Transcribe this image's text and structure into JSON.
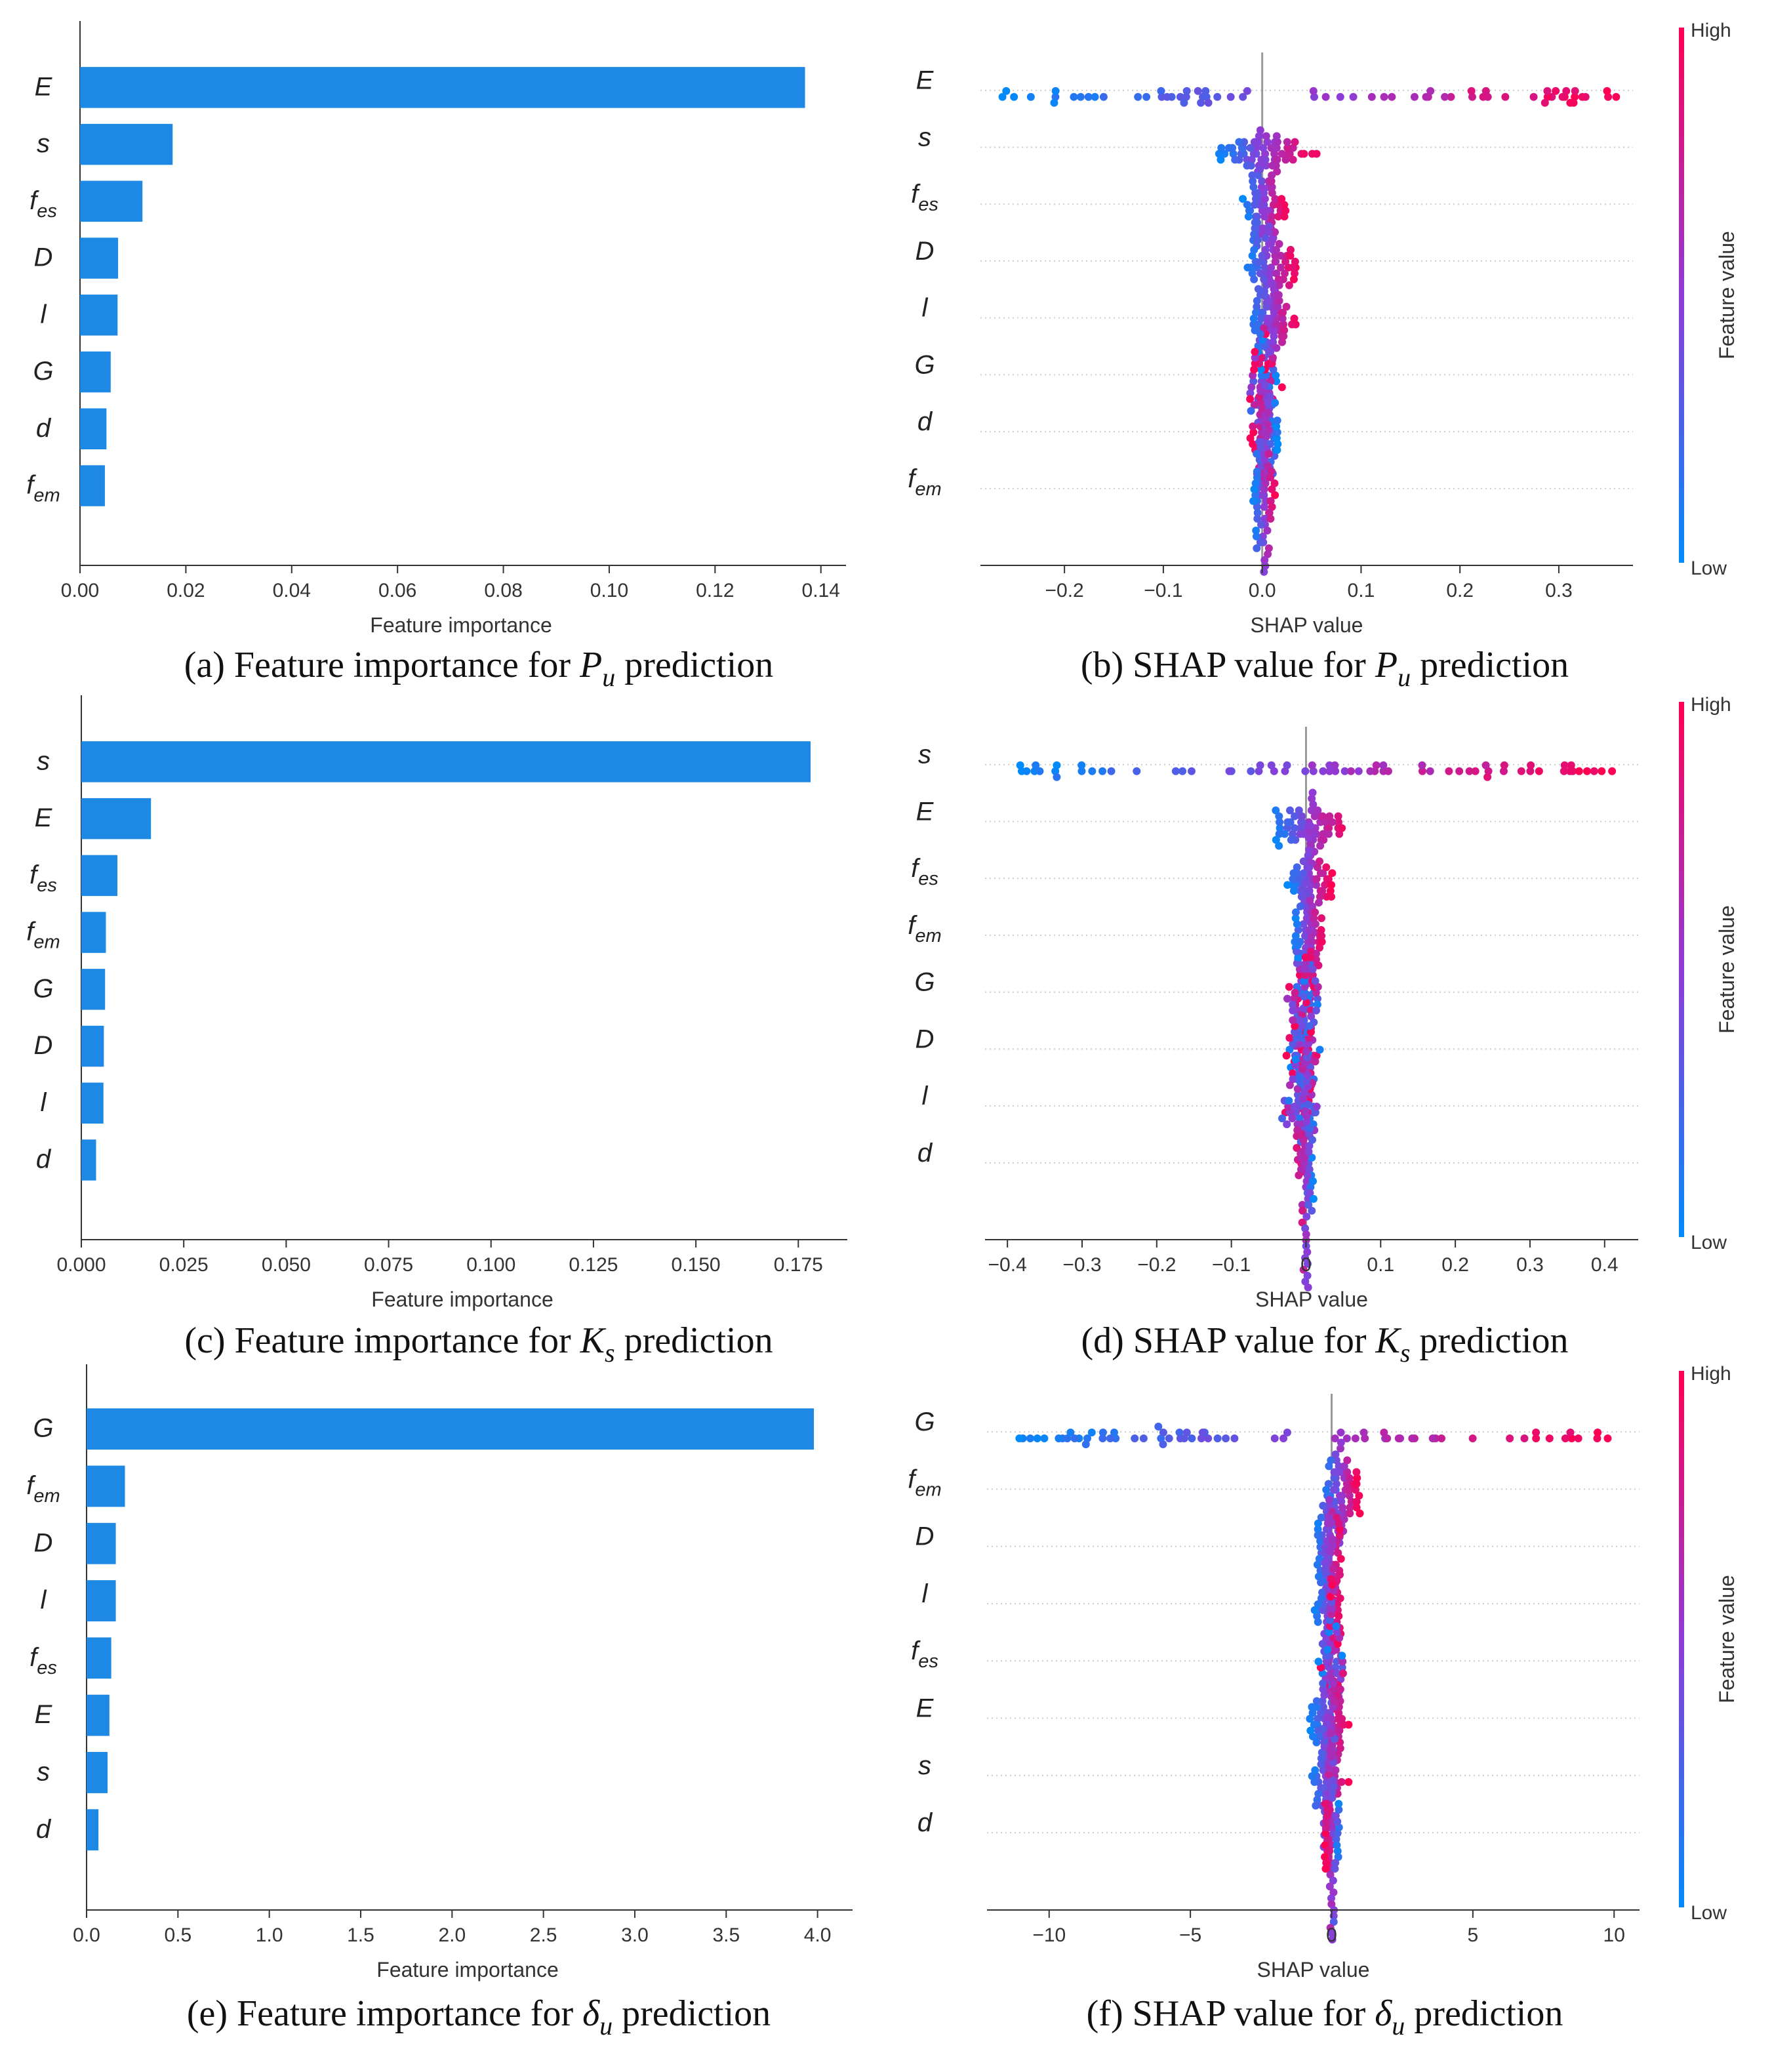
{
  "colorbar": {
    "high_label": "High",
    "low_label": "Low",
    "title": "Feature value"
  },
  "colors": {
    "bar": "#1e88e5",
    "low": "#008bfb",
    "mid": "#8f3bd6",
    "high": "#ff0052",
    "axis": "#333333",
    "grid": "#cccccc"
  },
  "chart_data": [
    {
      "id": "a",
      "type": "bar",
      "caption": {
        "prefix": "(a) Feature importance for ",
        "symbol": "P",
        "sub": "u",
        "suffix": " prediction"
      },
      "xlabel": "Feature importance",
      "features": [
        {
          "base": "E",
          "sub": ""
        },
        {
          "base": "s",
          "sub": ""
        },
        {
          "base": "f",
          "sub": "es"
        },
        {
          "base": "D",
          "sub": ""
        },
        {
          "base": "l",
          "sub": ""
        },
        {
          "base": "G",
          "sub": ""
        },
        {
          "base": "d",
          "sub": ""
        },
        {
          "base": "f",
          "sub": "em"
        }
      ],
      "values": [
        0.137,
        0.0175,
        0.0118,
        0.0072,
        0.0071,
        0.0058,
        0.005,
        0.0047
      ],
      "xlim": [
        0,
        0.144
      ],
      "ticks": [
        0,
        0.02,
        0.04,
        0.06,
        0.08,
        0.1,
        0.12,
        0.14
      ],
      "tick_labels": [
        "0.00",
        "0.02",
        "0.04",
        "0.06",
        "0.08",
        "0.10",
        "0.12",
        "0.14"
      ]
    },
    {
      "id": "b",
      "type": "scatter",
      "caption": {
        "prefix": "(b) SHAP value for ",
        "symbol": "P",
        "sub": "u",
        "suffix": " prediction"
      },
      "xlabel": "SHAP value",
      "features": [
        {
          "base": "E",
          "sub": ""
        },
        {
          "base": "s",
          "sub": ""
        },
        {
          "base": "f",
          "sub": "es"
        },
        {
          "base": "D",
          "sub": ""
        },
        {
          "base": "l",
          "sub": ""
        },
        {
          "base": "G",
          "sub": ""
        },
        {
          "base": "d",
          "sub": ""
        },
        {
          "base": "f",
          "sub": "em"
        }
      ],
      "xlim": [
        -0.285,
        0.375
      ],
      "ticks": [
        -0.2,
        -0.1,
        0.0,
        0.1,
        0.2,
        0.3
      ],
      "tick_labels": [
        "−0.2",
        "−0.1",
        "0.0",
        "0.1",
        "0.2",
        "0.3"
      ],
      "spread": [
        {
          "min": -0.27,
          "max": 0.36,
          "mode": "monotonic"
        },
        {
          "min": -0.05,
          "max": 0.055,
          "mode": "monotonic"
        },
        {
          "min": -0.02,
          "max": 0.025,
          "mode": "monotonic"
        },
        {
          "min": -0.018,
          "max": 0.035,
          "mode": "monotonic"
        },
        {
          "min": -0.016,
          "max": 0.035,
          "mode": "monotonic"
        },
        {
          "min": -0.016,
          "max": 0.02,
          "mode": "mixed"
        },
        {
          "min": -0.012,
          "max": 0.016,
          "mode": "reverse"
        },
        {
          "min": -0.01,
          "max": 0.014,
          "mode": "monotonic"
        }
      ]
    },
    {
      "id": "c",
      "type": "bar",
      "caption": {
        "prefix": "(c) Feature importance for ",
        "symbol": "K",
        "sub": "s",
        "suffix": " prediction"
      },
      "xlabel": "Feature importance",
      "features": [
        {
          "base": "s",
          "sub": ""
        },
        {
          "base": "E",
          "sub": ""
        },
        {
          "base": "f",
          "sub": "es"
        },
        {
          "base": "f",
          "sub": "em"
        },
        {
          "base": "G",
          "sub": ""
        },
        {
          "base": "D",
          "sub": ""
        },
        {
          "base": "l",
          "sub": ""
        },
        {
          "base": "d",
          "sub": ""
        }
      ],
      "values": [
        0.178,
        0.017,
        0.0088,
        0.006,
        0.0058,
        0.0055,
        0.0054,
        0.0036
      ],
      "xlim": [
        0,
        0.186
      ],
      "ticks": [
        0,
        0.025,
        0.05,
        0.075,
        0.1,
        0.125,
        0.15,
        0.175
      ],
      "tick_labels": [
        "0.000",
        "0.025",
        "0.050",
        "0.075",
        "0.100",
        "0.125",
        "0.150",
        "0.175"
      ]
    },
    {
      "id": "d",
      "type": "scatter",
      "caption": {
        "prefix": "(d) SHAP value for ",
        "symbol": "K",
        "sub": "s",
        "suffix": " prediction"
      },
      "xlabel": "SHAP value",
      "features": [
        {
          "base": "s",
          "sub": ""
        },
        {
          "base": "E",
          "sub": ""
        },
        {
          "base": "f",
          "sub": "es"
        },
        {
          "base": "f",
          "sub": "em"
        },
        {
          "base": "G",
          "sub": ""
        },
        {
          "base": "D",
          "sub": ""
        },
        {
          "base": "l",
          "sub": ""
        },
        {
          "base": "d",
          "sub": ""
        }
      ],
      "xlim": [
        -0.43,
        0.445
      ],
      "ticks": [
        -0.4,
        -0.3,
        -0.2,
        -0.1,
        0.0,
        0.1,
        0.2,
        0.3,
        0.4
      ],
      "tick_labels": [
        "−0.4",
        "−0.3",
        "−0.2",
        "−0.1",
        "0",
        "0.1",
        "0.2",
        "0.3",
        "0.4"
      ],
      "spread": [
        {
          "min": -0.39,
          "max": 0.41,
          "mode": "monotonic"
        },
        {
          "min": -0.05,
          "max": 0.06,
          "mode": "monotonic"
        },
        {
          "min": -0.025,
          "max": 0.035,
          "mode": "monotonic"
        },
        {
          "min": -0.018,
          "max": 0.025,
          "mode": "monotonic"
        },
        {
          "min": -0.025,
          "max": 0.022,
          "mode": "mixed"
        },
        {
          "min": -0.03,
          "max": 0.02,
          "mode": "mixed"
        },
        {
          "min": -0.032,
          "max": 0.02,
          "mode": "mixed"
        },
        {
          "min": -0.012,
          "max": 0.012,
          "mode": "reverse"
        }
      ]
    },
    {
      "id": "e",
      "type": "bar",
      "caption": {
        "prefix": "(e) Feature importance for ",
        "symbol": "δ",
        "sub": "u",
        "suffix": " prediction"
      },
      "xlabel": "Feature importance",
      "features": [
        {
          "base": "G",
          "sub": ""
        },
        {
          "base": "f",
          "sub": "em"
        },
        {
          "base": "D",
          "sub": ""
        },
        {
          "base": "l",
          "sub": ""
        },
        {
          "base": "f",
          "sub": "es"
        },
        {
          "base": "E",
          "sub": ""
        },
        {
          "base": "s",
          "sub": ""
        },
        {
          "base": "d",
          "sub": ""
        }
      ],
      "values": [
        3.98,
        0.21,
        0.16,
        0.16,
        0.135,
        0.125,
        0.115,
        0.065
      ],
      "xlim": [
        0,
        4.17
      ],
      "ticks": [
        0,
        0.5,
        1.0,
        1.5,
        2.0,
        2.5,
        3.0,
        3.5,
        4.0
      ],
      "tick_labels": [
        "0.0",
        "0.5",
        "1.0",
        "1.5",
        "2.0",
        "2.5",
        "3.0",
        "3.5",
        "4.0"
      ]
    },
    {
      "id": "f",
      "type": "scatter",
      "caption": {
        "prefix": "(f) SHAP value for ",
        "symbol": "δ",
        "sub": "u",
        "suffix": " prediction"
      },
      "xlabel": "SHAP value",
      "features": [
        {
          "base": "G",
          "sub": ""
        },
        {
          "base": "f",
          "sub": "em"
        },
        {
          "base": "D",
          "sub": ""
        },
        {
          "base": "l",
          "sub": ""
        },
        {
          "base": "f",
          "sub": "es"
        },
        {
          "base": "E",
          "sub": ""
        },
        {
          "base": "s",
          "sub": ""
        },
        {
          "base": "d",
          "sub": ""
        }
      ],
      "xlim": [
        -12.2,
        10.9
      ],
      "ticks": [
        -10,
        -5,
        0,
        5,
        10
      ],
      "tick_labels": [
        "−10",
        "−5",
        "0",
        "5",
        "10"
      ],
      "spread": [
        {
          "min": -11.3,
          "max": 9.9,
          "mode": "monotonic"
        },
        {
          "min": -0.4,
          "max": 1.0,
          "mode": "monotonic"
        },
        {
          "min": -0.6,
          "max": 0.4,
          "mode": "monotonic"
        },
        {
          "min": -0.6,
          "max": 0.4,
          "mode": "monotonic"
        },
        {
          "min": -0.5,
          "max": 0.45,
          "mode": "mixed"
        },
        {
          "min": -0.8,
          "max": 0.6,
          "mode": "monotonic"
        },
        {
          "min": -0.8,
          "max": 0.6,
          "mode": "monotonic"
        },
        {
          "min": -0.25,
          "max": 0.3,
          "mode": "reverse"
        }
      ]
    }
  ]
}
